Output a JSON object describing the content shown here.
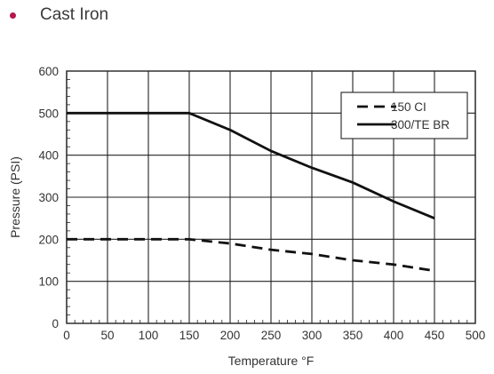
{
  "heading": {
    "text": "Cast Iron",
    "bullet_color": "#b5174b"
  },
  "chart_data": {
    "type": "line",
    "title": "",
    "xlabel": "Temperature °F",
    "ylabel": "Pressure (PSI)",
    "xlim": [
      0,
      500
    ],
    "ylim": [
      0,
      600
    ],
    "x_ticks": [
      0,
      50,
      100,
      150,
      200,
      250,
      300,
      350,
      400,
      450,
      500
    ],
    "y_ticks": [
      0,
      100,
      200,
      300,
      400,
      500,
      600
    ],
    "grid": true,
    "legend_position": "top-right",
    "series": [
      {
        "name": "150 CI",
        "style": "dashed",
        "color": "#111111",
        "x": [
          0,
          150,
          200,
          250,
          300,
          350,
          400,
          450
        ],
        "y": [
          200,
          200,
          190,
          175,
          165,
          150,
          140,
          125
        ]
      },
      {
        "name": "300/TE BR",
        "style": "solid",
        "color": "#111111",
        "x": [
          0,
          150,
          200,
          250,
          300,
          350,
          400,
          450
        ],
        "y": [
          500,
          500,
          460,
          410,
          370,
          335,
          290,
          250
        ]
      }
    ]
  }
}
